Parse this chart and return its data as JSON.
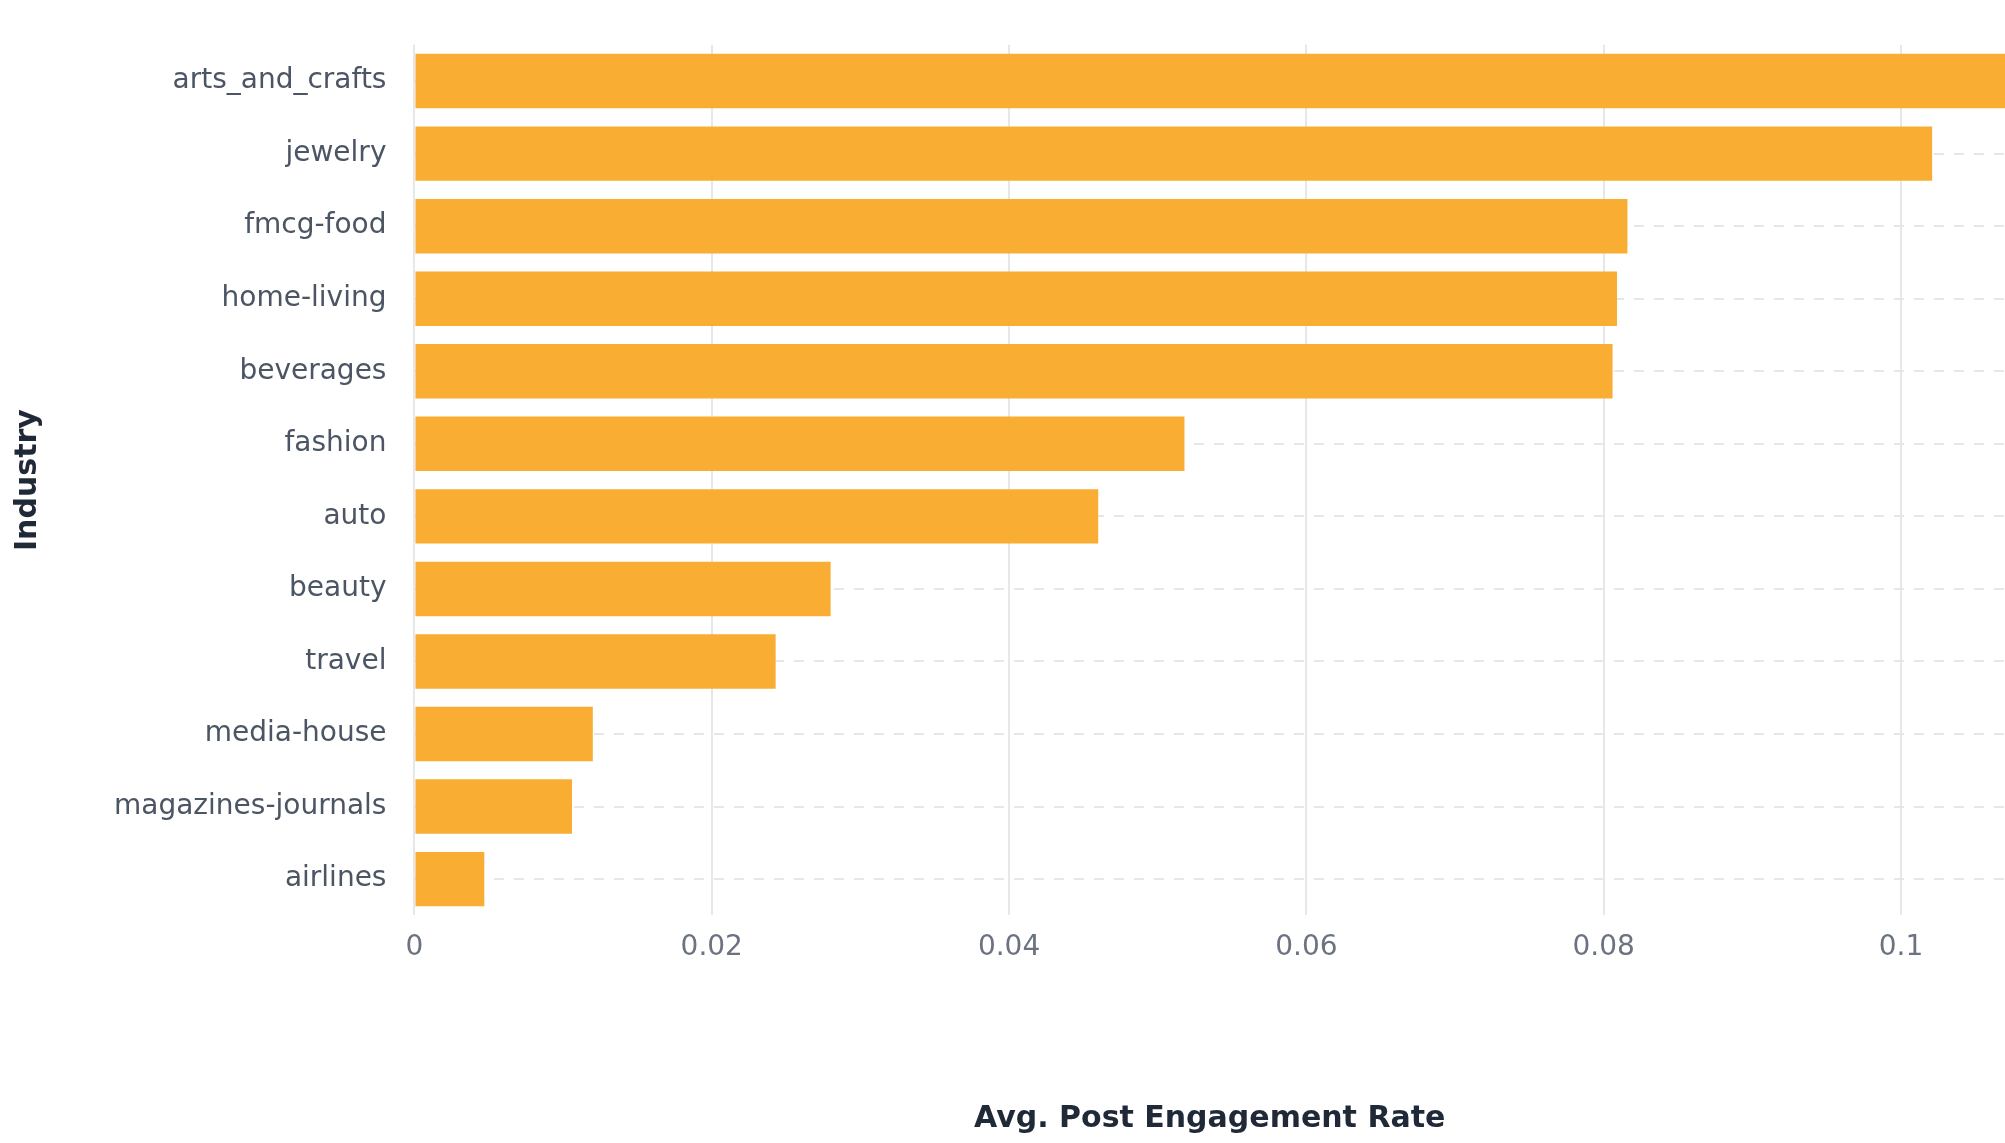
{
  "chart_data": {
    "type": "bar",
    "orientation": "horizontal",
    "xlabel": "Avg. Post Engagement Rate",
    "ylabel": "Industry",
    "categories": [
      "arts_and_crafts",
      "jewelry",
      "fmcg-food",
      "home-living",
      "beverages",
      "fashion",
      "auto",
      "beauty",
      "travel",
      "media-house",
      "magazines-journals",
      "airlines"
    ],
    "values": [
      0.107,
      0.1021,
      0.0816,
      0.0809,
      0.0806,
      0.0518,
      0.046,
      0.028,
      0.0243,
      0.012,
      0.0106,
      0.0047
    ],
    "color": "#f9ae33",
    "xlim": [
      0,
      0.107
    ],
    "xticks": [
      0,
      0.02,
      0.04,
      0.06,
      0.08,
      0.1
    ],
    "grid": true,
    "legend": false
  }
}
